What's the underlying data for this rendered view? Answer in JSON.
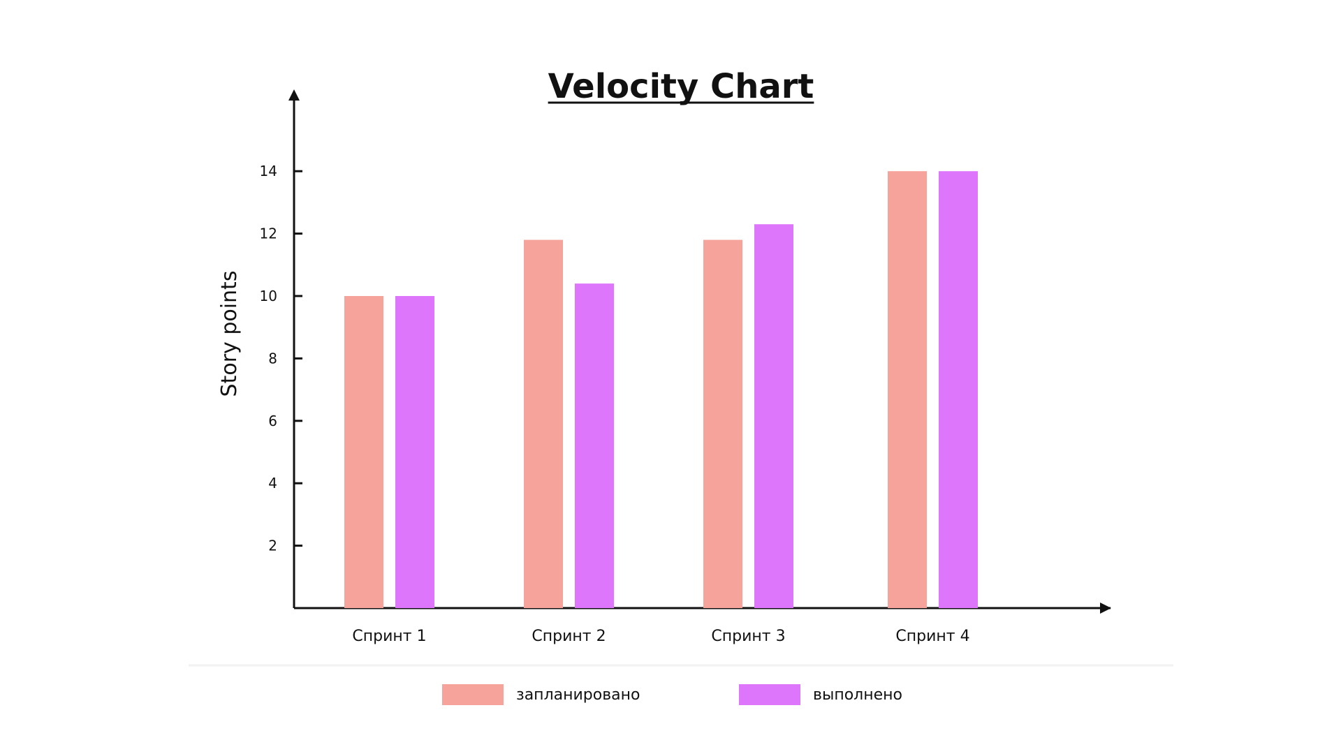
{
  "chart_data": {
    "type": "bar",
    "title": "Velocity Chart",
    "xlabel": "",
    "ylabel": "Story points",
    "categories": [
      "Спринт 1",
      "Спринт 2",
      "Спринт 3",
      "Спринт 4"
    ],
    "series": [
      {
        "name": "запланировано",
        "color": "#f6a39c",
        "values": [
          10,
          11.8,
          11.8,
          14
        ]
      },
      {
        "name": "выполнено",
        "color": "#de76fb",
        "values": [
          10,
          10.4,
          12.3,
          14
        ]
      }
    ],
    "yticks": [
      2,
      4,
      6,
      8,
      10,
      12,
      14
    ],
    "ylim": [
      0,
      14.5
    ],
    "grid": false,
    "legend_position": "bottom"
  }
}
